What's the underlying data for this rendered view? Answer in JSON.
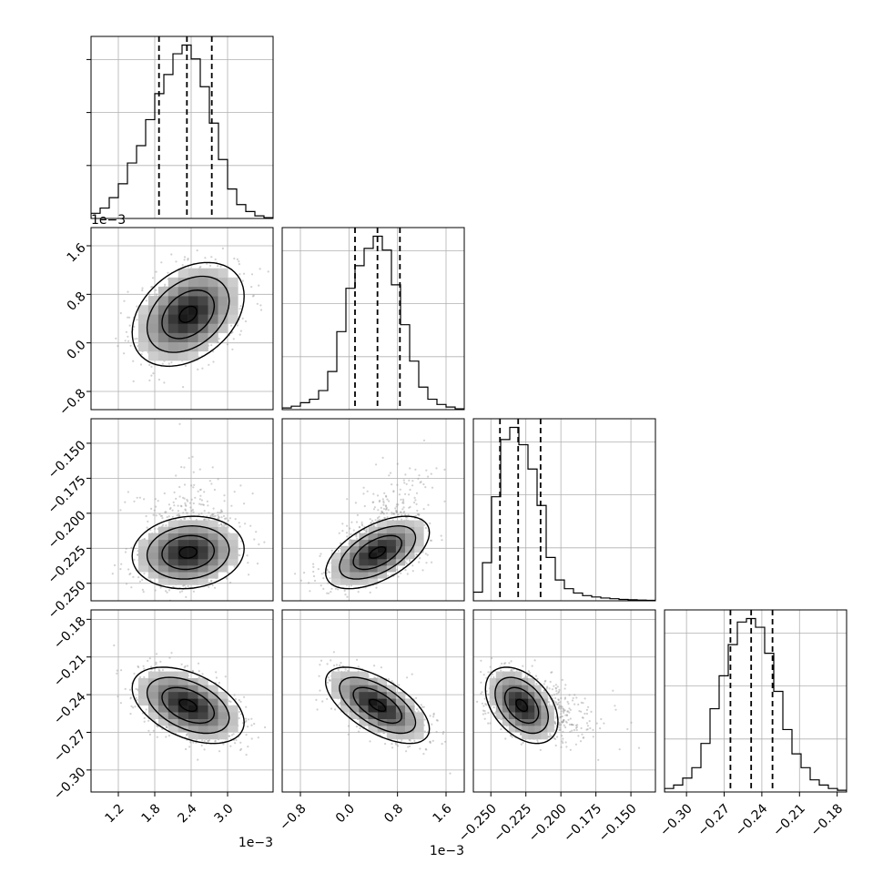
{
  "chart_data": {
    "type": "corner",
    "grid": true,
    "colors": {
      "line": "#000000",
      "scatter": "#9a9a9a",
      "grid": "#b0b0b0",
      "background": "#ffffff"
    },
    "params": [
      {
        "range": [
          0.00075,
          0.00375
        ],
        "ticks": [
          0.0012,
          0.0018,
          0.0024,
          0.003
        ],
        "tick_labels": [
          "1.2",
          "1.8",
          "2.4",
          "3.0"
        ],
        "offset": "1e−3",
        "quantiles": [
          0.00187,
          0.00233,
          0.00274
        ],
        "hist": [
          0.03,
          0.06,
          0.12,
          0.2,
          0.32,
          0.42,
          0.57,
          0.72,
          0.83,
          0.95,
          1.0,
          0.92,
          0.76,
          0.55,
          0.34,
          0.17,
          0.08,
          0.04,
          0.015,
          0.005
        ]
      },
      {
        "range": [
          -0.0011,
          0.0019
        ],
        "ticks": [
          -0.0008,
          0.0,
          0.0008,
          0.0016
        ],
        "tick_labels": [
          "−0.8",
          "0.0",
          "0.8",
          "1.6"
        ],
        "offset": "1e−3",
        "quantiles": [
          0.0001,
          0.00047,
          0.00084
        ],
        "hist": [
          0.01,
          0.02,
          0.04,
          0.06,
          0.11,
          0.22,
          0.45,
          0.7,
          0.83,
          0.93,
          1.0,
          0.92,
          0.72,
          0.49,
          0.28,
          0.13,
          0.06,
          0.03,
          0.015,
          0.005
        ]
      },
      {
        "range": [
          -0.2625,
          -0.1325
        ],
        "ticks": [
          -0.25,
          -0.225,
          -0.2,
          -0.175,
          -0.15
        ],
        "tick_labels": [
          "−0.250",
          "−0.225",
          "−0.200",
          "−0.175",
          "−0.150"
        ],
        "offset": "",
        "quantiles": [
          -0.2435,
          -0.2305,
          -0.2145
        ],
        "hist": [
          0.05,
          0.22,
          0.6,
          0.93,
          1.0,
          0.9,
          0.76,
          0.55,
          0.25,
          0.12,
          0.07,
          0.045,
          0.03,
          0.022,
          0.016,
          0.012,
          0.008,
          0.006,
          0.004,
          0.003
        ]
      },
      {
        "range": [
          -0.3175,
          -0.1725
        ],
        "ticks": [
          -0.3,
          -0.27,
          -0.24,
          -0.21,
          -0.18
        ],
        "tick_labels": [
          "−0.30",
          "−0.27",
          "−0.24",
          "−0.21",
          "−0.18"
        ],
        "offset": "",
        "quantiles": [
          -0.265,
          -0.2485,
          -0.2315
        ],
        "hist": [
          0.02,
          0.04,
          0.08,
          0.14,
          0.28,
          0.48,
          0.67,
          0.85,
          0.98,
          1.0,
          0.95,
          0.8,
          0.58,
          0.36,
          0.22,
          0.14,
          0.07,
          0.04,
          0.02,
          0.01
        ]
      }
    ],
    "pairs": [
      {
        "x": 0,
        "y": 1,
        "mean": [
          0.00235,
          0.00047
        ],
        "std": [
          0.00041,
          0.00038
        ],
        "rho": 0.35
      },
      {
        "x": 0,
        "y": 2,
        "mean": [
          0.00235,
          -0.228
        ],
        "std": [
          0.00041,
          0.0115
        ],
        "rho": 0.1
      },
      {
        "x": 1,
        "y": 2,
        "mean": [
          0.00047,
          -0.228
        ],
        "std": [
          0.00038,
          0.0115
        ],
        "rho": 0.55
      },
      {
        "x": 0,
        "y": 3,
        "mean": [
          0.00235,
          -0.2485
        ],
        "std": [
          0.00041,
          0.0135
        ],
        "rho": -0.45
      },
      {
        "x": 1,
        "y": 3,
        "mean": [
          0.00047,
          -0.2485
        ],
        "std": [
          0.00038,
          0.0135
        ],
        "rho": -0.62
      },
      {
        "x": 2,
        "y": 3,
        "mean": [
          -0.228,
          -0.2485
        ],
        "std": [
          0.0115,
          0.0135
        ],
        "rho": -0.42
      }
    ]
  }
}
